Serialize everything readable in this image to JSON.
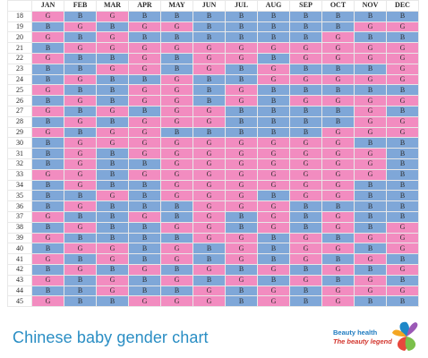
{
  "months": [
    "JAN",
    "FEB",
    "MAR",
    "APR",
    "MAY",
    "JUN",
    "JUL",
    "AUG",
    "SEP",
    "OCT",
    "NOV",
    "DEC"
  ],
  "rows": [
    {
      "age": "18",
      "cells": [
        "G",
        "B",
        "G",
        "B",
        "B",
        "B",
        "B",
        "B",
        "B",
        "B",
        "B",
        "B"
      ]
    },
    {
      "age": "19",
      "cells": [
        "B",
        "G",
        "B",
        "G",
        "G",
        "B",
        "B",
        "B",
        "B",
        "B",
        "G",
        "G"
      ]
    },
    {
      "age": "20",
      "cells": [
        "G",
        "B",
        "G",
        "B",
        "B",
        "B",
        "B",
        "B",
        "B",
        "G",
        "B",
        "B"
      ]
    },
    {
      "age": "21",
      "cells": [
        "B",
        "G",
        "G",
        "G",
        "G",
        "G",
        "G",
        "G",
        "G",
        "G",
        "G",
        "G"
      ]
    },
    {
      "age": "22",
      "cells": [
        "G",
        "B",
        "B",
        "G",
        "B",
        "G",
        "G",
        "B",
        "G",
        "G",
        "G",
        "G"
      ]
    },
    {
      "age": "23",
      "cells": [
        "B",
        "B",
        "G",
        "G",
        "B",
        "G",
        "B",
        "G",
        "B",
        "B",
        "B",
        "G"
      ]
    },
    {
      "age": "24",
      "cells": [
        "B",
        "G",
        "B",
        "B",
        "G",
        "B",
        "B",
        "G",
        "G",
        "G",
        "G",
        "G"
      ]
    },
    {
      "age": "25",
      "cells": [
        "G",
        "B",
        "B",
        "G",
        "G",
        "B",
        "G",
        "B",
        "B",
        "B",
        "B",
        "B"
      ]
    },
    {
      "age": "26",
      "cells": [
        "B",
        "G",
        "B",
        "G",
        "G",
        "B",
        "G",
        "B",
        "G",
        "G",
        "G",
        "G"
      ]
    },
    {
      "age": "27",
      "cells": [
        "G",
        "B",
        "G",
        "B",
        "G",
        "G",
        "B",
        "B",
        "B",
        "B",
        "G",
        "B"
      ]
    },
    {
      "age": "28",
      "cells": [
        "B",
        "G",
        "B",
        "G",
        "G",
        "G",
        "B",
        "B",
        "B",
        "B",
        "G",
        "G"
      ]
    },
    {
      "age": "29",
      "cells": [
        "G",
        "B",
        "G",
        "G",
        "B",
        "B",
        "B",
        "B",
        "B",
        "G",
        "G",
        "G"
      ]
    },
    {
      "age": "30",
      "cells": [
        "B",
        "G",
        "G",
        "G",
        "G",
        "G",
        "G",
        "G",
        "G",
        "G",
        "B",
        "B"
      ]
    },
    {
      "age": "31",
      "cells": [
        "B",
        "G",
        "B",
        "G",
        "G",
        "G",
        "G",
        "G",
        "G",
        "G",
        "G",
        "B"
      ]
    },
    {
      "age": "32",
      "cells": [
        "B",
        "G",
        "B",
        "B",
        "G",
        "G",
        "G",
        "G",
        "G",
        "G",
        "G",
        "B"
      ]
    },
    {
      "age": "33",
      "cells": [
        "G",
        "G",
        "B",
        "G",
        "G",
        "G",
        "G",
        "G",
        "G",
        "G",
        "G",
        "B"
      ]
    },
    {
      "age": "34",
      "cells": [
        "B",
        "G",
        "B",
        "B",
        "G",
        "G",
        "G",
        "G",
        "G",
        "G",
        "B",
        "B"
      ]
    },
    {
      "age": "35",
      "cells": [
        "B",
        "B",
        "G",
        "B",
        "G",
        "G",
        "G",
        "B",
        "G",
        "G",
        "B",
        "B"
      ]
    },
    {
      "age": "36",
      "cells": [
        "B",
        "G",
        "B",
        "B",
        "B",
        "G",
        "G",
        "G",
        "B",
        "B",
        "B",
        "B"
      ]
    },
    {
      "age": "37",
      "cells": [
        "G",
        "B",
        "B",
        "G",
        "B",
        "G",
        "B",
        "G",
        "B",
        "G",
        "B",
        "B"
      ]
    },
    {
      "age": "38",
      "cells": [
        "B",
        "G",
        "B",
        "B",
        "G",
        "G",
        "B",
        "G",
        "B",
        "G",
        "B",
        "G"
      ]
    },
    {
      "age": "39",
      "cells": [
        "G",
        "B",
        "B",
        "B",
        "B",
        "G",
        "G",
        "B",
        "G",
        "B",
        "G",
        "G"
      ]
    },
    {
      "age": "40",
      "cells": [
        "B",
        "G",
        "G",
        "B",
        "G",
        "B",
        "G",
        "B",
        "G",
        "G",
        "B",
        "G"
      ]
    },
    {
      "age": "41",
      "cells": [
        "G",
        "B",
        "G",
        "B",
        "G",
        "B",
        "G",
        "B",
        "G",
        "B",
        "G",
        "B"
      ]
    },
    {
      "age": "42",
      "cells": [
        "B",
        "G",
        "B",
        "G",
        "B",
        "G",
        "B",
        "G",
        "B",
        "G",
        "B",
        "G"
      ]
    },
    {
      "age": "43",
      "cells": [
        "G",
        "B",
        "G",
        "B",
        "G",
        "B",
        "G",
        "B",
        "G",
        "B",
        "G",
        "B"
      ]
    },
    {
      "age": "44",
      "cells": [
        "B",
        "B",
        "G",
        "B",
        "B",
        "G",
        "B",
        "G",
        "B",
        "G",
        "G",
        "G"
      ]
    },
    {
      "age": "45",
      "cells": [
        "G",
        "B",
        "B",
        "G",
        "G",
        "G",
        "B",
        "G",
        "B",
        "G",
        "B",
        "B"
      ]
    }
  ],
  "caption": "Chinese baby gender chart",
  "logo": {
    "line1": "Beauty health",
    "line2": "The beauty legend"
  },
  "colors": {
    "boy": "#7fa7d8",
    "girl": "#f28cc0",
    "caption": "#2a8ec4"
  }
}
